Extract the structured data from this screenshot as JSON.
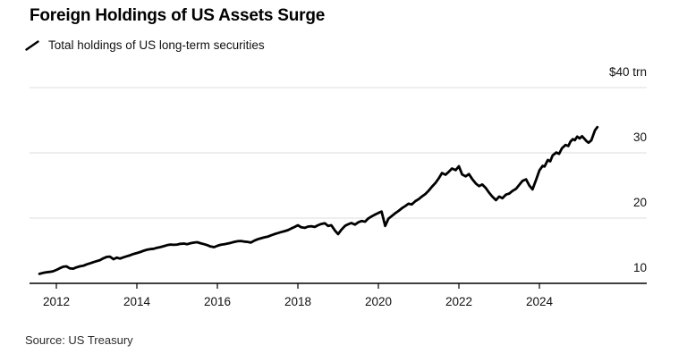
{
  "header": {
    "title": "Foreign Holdings of US Assets Surge",
    "legend_label": "Total holdings of US long-term securities"
  },
  "footer": {
    "source": "Source: US Treasury"
  },
  "colors": {
    "background": "#ffffff",
    "series_line": "#000000",
    "grid": "#dcdcdc",
    "axis": "#000000",
    "text": "#111111"
  },
  "chart_data": {
    "type": "line",
    "title": "Foreign Holdings of US Assets Surge",
    "ylabel_unit": "$ trn",
    "xlabel": "",
    "grid": "horizontal",
    "legend_position": "top-left",
    "xlim": [
      2011.333,
      2026.667
    ],
    "ylim": [
      10,
      40
    ],
    "x_ticks": [
      2012,
      2014,
      2016,
      2018,
      2020,
      2022,
      2024
    ],
    "y_ticks": [
      {
        "value": 40,
        "label": "$40 trn"
      },
      {
        "value": 30,
        "label": "30"
      },
      {
        "value": 20,
        "label": "20"
      },
      {
        "value": 10,
        "label": "10"
      }
    ],
    "series": [
      {
        "name": "Total holdings of US long-term securities",
        "color": "#000000",
        "x": [
          2011.58,
          2011.67,
          2011.75,
          2011.83,
          2011.92,
          2012.0,
          2012.08,
          2012.17,
          2012.25,
          2012.33,
          2012.42,
          2012.5,
          2012.58,
          2012.67,
          2012.75,
          2012.83,
          2012.92,
          2013.0,
          2013.08,
          2013.17,
          2013.25,
          2013.33,
          2013.42,
          2013.5,
          2013.58,
          2013.67,
          2013.75,
          2013.83,
          2013.92,
          2014.0,
          2014.08,
          2014.17,
          2014.25,
          2014.33,
          2014.42,
          2014.5,
          2014.58,
          2014.67,
          2014.75,
          2014.83,
          2014.92,
          2015.0,
          2015.08,
          2015.17,
          2015.25,
          2015.33,
          2015.42,
          2015.5,
          2015.58,
          2015.67,
          2015.75,
          2015.83,
          2015.92,
          2016.0,
          2016.08,
          2016.17,
          2016.25,
          2016.33,
          2016.42,
          2016.5,
          2016.58,
          2016.67,
          2016.75,
          2016.83,
          2016.92,
          2017.0,
          2017.08,
          2017.17,
          2017.25,
          2017.33,
          2017.42,
          2017.5,
          2017.58,
          2017.67,
          2017.75,
          2017.83,
          2017.92,
          2018.0,
          2018.08,
          2018.17,
          2018.25,
          2018.33,
          2018.42,
          2018.5,
          2018.58,
          2018.67,
          2018.75,
          2018.83,
          2018.92,
          2019.0,
          2019.08,
          2019.17,
          2019.25,
          2019.33,
          2019.42,
          2019.5,
          2019.58,
          2019.67,
          2019.75,
          2019.83,
          2019.92,
          2020.0,
          2020.08,
          2020.17,
          2020.25,
          2020.33,
          2020.42,
          2020.5,
          2020.58,
          2020.67,
          2020.75,
          2020.83,
          2020.92,
          2021.0,
          2021.08,
          2021.17,
          2021.25,
          2021.33,
          2021.42,
          2021.5,
          2021.58,
          2021.67,
          2021.75,
          2021.83,
          2021.92,
          2022.0,
          2022.08,
          2022.17,
          2022.25,
          2022.33,
          2022.42,
          2022.5,
          2022.58,
          2022.67,
          2022.75,
          2022.83,
          2022.92,
          2023.0,
          2023.08,
          2023.17,
          2023.25,
          2023.33,
          2023.42,
          2023.5,
          2023.58,
          2023.67,
          2023.75,
          2023.83,
          2023.92,
          2024.0,
          2024.08,
          2024.13,
          2024.21,
          2024.27,
          2024.33,
          2024.42,
          2024.49,
          2024.56,
          2024.65,
          2024.72,
          2024.77,
          2024.83,
          2024.88,
          2024.94,
          2025.0,
          2025.06,
          2025.12,
          2025.17,
          2025.22,
          2025.29,
          2025.38,
          2025.44
        ],
        "values": [
          11.45,
          11.6,
          11.7,
          11.75,
          11.85,
          12.05,
          12.3,
          12.55,
          12.6,
          12.3,
          12.25,
          12.45,
          12.6,
          12.7,
          12.9,
          13.05,
          13.25,
          13.4,
          13.55,
          13.85,
          14.05,
          14.1,
          13.7,
          13.95,
          13.8,
          14.0,
          14.15,
          14.3,
          14.5,
          14.65,
          14.8,
          15.0,
          15.15,
          15.25,
          15.3,
          15.45,
          15.55,
          15.7,
          15.85,
          15.95,
          15.9,
          15.95,
          16.05,
          16.1,
          16.0,
          16.15,
          16.25,
          16.3,
          16.15,
          16.0,
          15.85,
          15.65,
          15.55,
          15.75,
          15.9,
          16.0,
          16.1,
          16.2,
          16.35,
          16.45,
          16.5,
          16.4,
          16.35,
          16.25,
          16.55,
          16.75,
          16.9,
          17.05,
          17.15,
          17.35,
          17.55,
          17.7,
          17.85,
          18.0,
          18.15,
          18.4,
          18.65,
          18.9,
          18.6,
          18.5,
          18.7,
          18.75,
          18.65,
          18.9,
          19.1,
          19.2,
          18.8,
          18.9,
          18.1,
          17.55,
          18.2,
          18.8,
          19.05,
          19.25,
          19.0,
          19.35,
          19.55,
          19.45,
          19.95,
          20.25,
          20.55,
          20.8,
          21.0,
          18.8,
          19.9,
          20.3,
          20.75,
          21.1,
          21.5,
          21.85,
          22.2,
          22.1,
          22.6,
          22.9,
          23.3,
          23.7,
          24.2,
          24.8,
          25.4,
          26.1,
          26.9,
          26.65,
          27.1,
          27.6,
          27.35,
          27.95,
          26.7,
          26.4,
          26.75,
          26.0,
          25.3,
          24.9,
          25.15,
          24.6,
          23.9,
          23.3,
          22.75,
          23.3,
          23.05,
          23.6,
          23.75,
          24.15,
          24.5,
          25.1,
          25.7,
          25.95,
          25.0,
          24.4,
          25.9,
          27.3,
          28.0,
          27.9,
          28.9,
          28.7,
          29.6,
          30.05,
          29.85,
          30.7,
          31.2,
          31.05,
          31.7,
          32.1,
          31.95,
          32.5,
          32.2,
          32.55,
          32.15,
          31.8,
          31.55,
          31.9,
          33.45,
          33.95
        ]
      }
    ]
  }
}
